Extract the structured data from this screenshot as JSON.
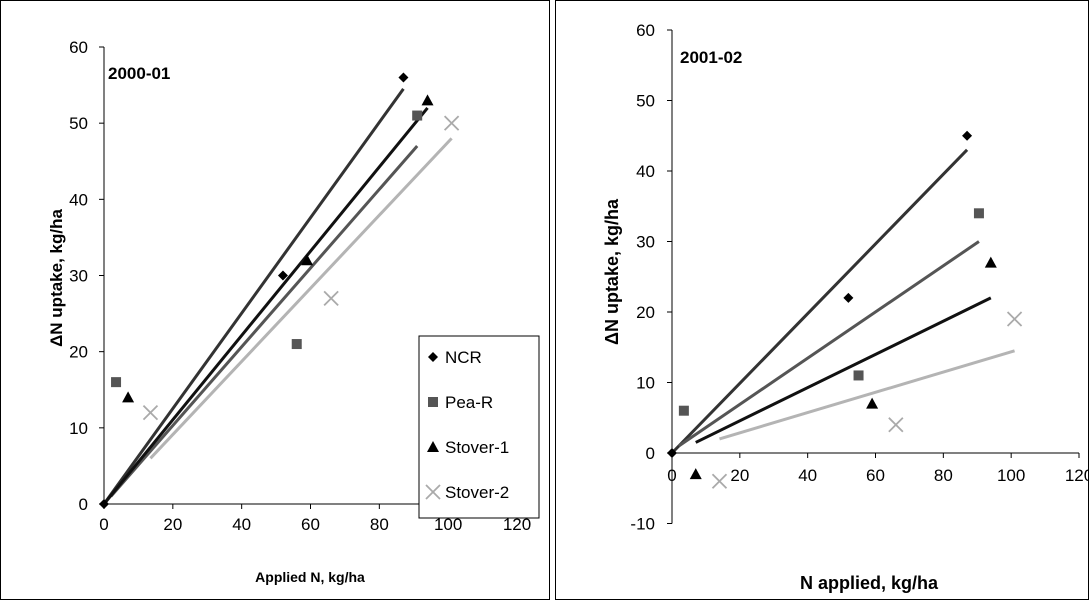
{
  "colors": {
    "NCR": "#000000",
    "Pea-R": "#555555",
    "Stover-1": "#000000",
    "Stover-2": "#aaaaaa",
    "line_NCR": "#333333",
    "line_Pea-R": "#555555",
    "line_Stover-1": "#111111",
    "line_Stover-2": "#b4b4b4"
  },
  "chart_data": [
    {
      "type": "scatter",
      "title": "2000-01",
      "xlabel": "Applied N, kg/ha",
      "ylabel": "ΔN uptake, kg/ha",
      "xlim": [
        0,
        120
      ],
      "ylim": [
        0,
        60
      ],
      "xticks": [
        0,
        20,
        40,
        60,
        80,
        100,
        120
      ],
      "yticks": [
        0,
        10,
        20,
        30,
        40,
        50,
        60
      ],
      "legend": {
        "position": "bottom-right",
        "entries": [
          "NCR",
          "Pea-R",
          "Stover-1",
          "Stover-2"
        ]
      },
      "series": [
        {
          "name": "NCR",
          "marker": "diamond",
          "points": [
            [
              0,
              0
            ],
            [
              52,
              30
            ],
            [
              87,
              56
            ]
          ],
          "trend": [
            [
              0,
              0
            ],
            [
              87,
              54.5
            ]
          ]
        },
        {
          "name": "Pea-R",
          "marker": "square",
          "points": [
            [
              3.5,
              16
            ],
            [
              56,
              21
            ],
            [
              91,
              51
            ]
          ],
          "trend": [
            [
              2,
              1
            ],
            [
              91,
              47
            ]
          ]
        },
        {
          "name": "Stover-1",
          "marker": "triangle",
          "points": [
            [
              7,
              14
            ],
            [
              59,
              32
            ],
            [
              94,
              53
            ]
          ],
          "trend": [
            [
              0,
              0
            ],
            [
              94,
              52
            ]
          ]
        },
        {
          "name": "Stover-2",
          "marker": "x",
          "points": [
            [
              13.5,
              12
            ],
            [
              66,
              27
            ],
            [
              101,
              50
            ]
          ],
          "trend": [
            [
              13.5,
              6
            ],
            [
              101,
              48
            ]
          ]
        }
      ]
    },
    {
      "type": "scatter",
      "title": "2001-02",
      "xlabel": "N applied, kg/ha",
      "ylabel": "ΔN uptake, kg/ha",
      "xlim": [
        0,
        120
      ],
      "ylim": [
        -10,
        60
      ],
      "xticks": [
        0,
        20,
        40,
        60,
        80,
        100,
        120
      ],
      "yticks": [
        -10,
        0,
        10,
        20,
        30,
        40,
        50,
        60
      ],
      "series": [
        {
          "name": "NCR",
          "marker": "diamond",
          "points": [
            [
              0,
              0
            ],
            [
              52,
              22
            ],
            [
              87,
              45
            ]
          ],
          "trend": [
            [
              0,
              0
            ],
            [
              87,
              43
            ]
          ]
        },
        {
          "name": "Pea-R",
          "marker": "square",
          "points": [
            [
              3.5,
              6
            ],
            [
              55,
              11
            ],
            [
              90.5,
              34
            ]
          ],
          "trend": [
            [
              2,
              1
            ],
            [
              90.5,
              30
            ]
          ]
        },
        {
          "name": "Stover-1",
          "marker": "triangle",
          "points": [
            [
              7,
              -3
            ],
            [
              59,
              7
            ],
            [
              94,
              27
            ]
          ],
          "trend": [
            [
              7,
              1.5
            ],
            [
              94,
              22
            ]
          ]
        },
        {
          "name": "Stover-2",
          "marker": "x",
          "points": [
            [
              14,
              -4
            ],
            [
              66,
              4
            ],
            [
              101,
              19
            ]
          ],
          "trend": [
            [
              14,
              2
            ],
            [
              101,
              14.5
            ]
          ]
        }
      ]
    }
  ]
}
